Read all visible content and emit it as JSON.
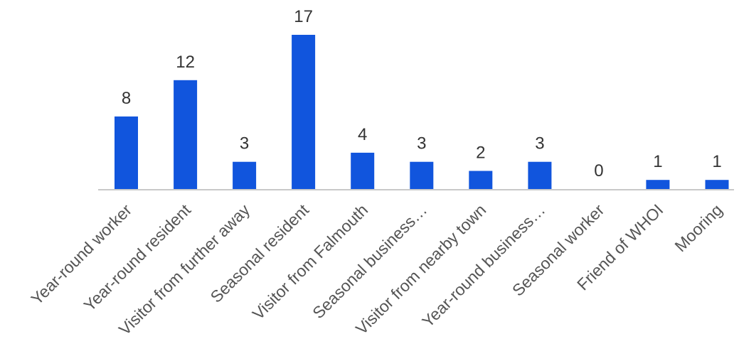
{
  "chart_data": {
    "type": "bar",
    "categories": [
      "Year-round worker",
      "Year-round resident",
      "Visitor from further away",
      "Seasonal resident",
      "Visitor from Falmouth",
      "Seasonal business…",
      "Visitor from nearby town",
      "Year-round business…",
      "Seasonal worker",
      "Friend of WHOI",
      "Mooring"
    ],
    "values": [
      8,
      12,
      3,
      17,
      4,
      3,
      2,
      3,
      0,
      1,
      1
    ],
    "title": "",
    "xlabel": "",
    "ylabel": "",
    "ylim": [
      0,
      17
    ],
    "grid": false,
    "legend": "none",
    "bar_color": "#1155dd"
  }
}
